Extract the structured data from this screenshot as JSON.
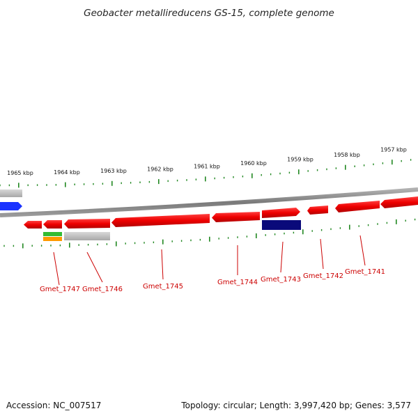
{
  "title": "Geobacter metallireducens GS-15, complete genome",
  "footer": {
    "accession": "Accession: NC_007517",
    "summary": "Topology: circular; Length: 3,997,420 bp; Genes: 3,577"
  },
  "colors": {
    "gene_forward": "#ee0000",
    "gene_other": "#ee0000",
    "feature_blue": "#1a33ff",
    "feature_navy": "#0a0a7a",
    "feature_grey": "#c0c0c0",
    "feature_green": "#33bb33",
    "feature_orange": "#ff9900",
    "ticks": "#228822",
    "label": "#cc0000",
    "backbone": "#808080"
  },
  "ruler": {
    "labels": [
      "1965 kbp",
      "1964 kbp",
      "1963 kbp",
      "1962 kbp",
      "1961 kbp",
      "1960 kbp",
      "1959 kbp",
      "1958 kbp",
      "1957 kbp"
    ]
  },
  "genes": [
    {
      "id": "Gmet_1747",
      "label": "Gmet_1747"
    },
    {
      "id": "Gmet_1746",
      "label": "Gmet_1746"
    },
    {
      "id": "Gmet_1745",
      "label": "Gmet_1745"
    },
    {
      "id": "Gmet_1744",
      "label": "Gmet_1744"
    },
    {
      "id": "Gmet_1743",
      "label": "Gmet_1743"
    },
    {
      "id": "Gmet_1742",
      "label": "Gmet_1742"
    },
    {
      "id": "Gmet_1741",
      "label": "Gmet_1741"
    }
  ]
}
